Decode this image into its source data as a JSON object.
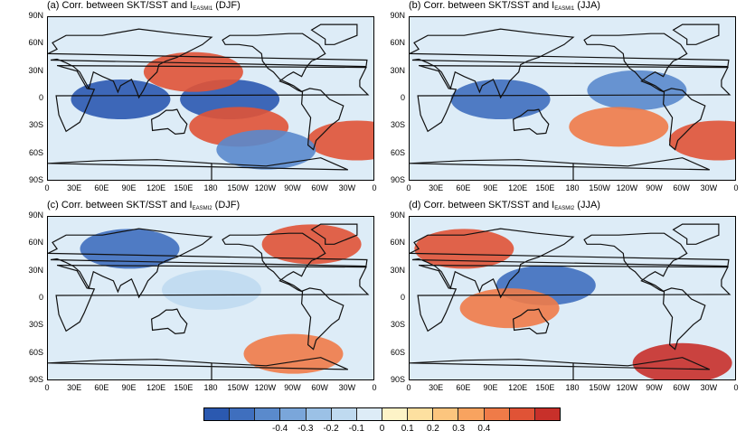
{
  "panels": [
    {
      "id": "a",
      "title_pre": "(a) Corr. between SKT/SST and I",
      "title_sub": "EASMI1",
      "title_post": " (DJF)"
    },
    {
      "id": "b",
      "title_pre": "(b) Corr. between SKT/SST and I",
      "title_sub": "EASMI1",
      "title_post": " (JJA)"
    },
    {
      "id": "c",
      "title_pre": "(c) Corr. between SKT/SST and I",
      "title_sub": "EASMI2",
      "title_post": " (DJF)"
    },
    {
      "id": "d",
      "title_pre": "(d) Corr. between SKT/SST and I",
      "title_sub": "EASMI2",
      "title_post": " (JJA)"
    }
  ],
  "y_ticks": [
    "90N",
    "60N",
    "30N",
    "0",
    "30S",
    "60S",
    "90S"
  ],
  "x_ticks": [
    "0",
    "30E",
    "60E",
    "90E",
    "120E",
    "150E",
    "180",
    "150W",
    "120W",
    "90W",
    "60W",
    "30W",
    "0"
  ],
  "colorbar": {
    "ticks": [
      "-0.4",
      "-0.3",
      "-0.2",
      "-0.1",
      "0",
      "0.1",
      "0.2",
      "0.3",
      "0.4"
    ],
    "colors": [
      "#2b59b0",
      "#3f6fbe",
      "#5a8acc",
      "#7aa6da",
      "#9bc1e6",
      "#bfdaf0",
      "#ddecf7",
      "#fdf3c7",
      "#fde0a0",
      "#fcc57e",
      "#f8a35f",
      "#ef7b48",
      "#e05336",
      "#c8302a"
    ]
  },
  "chart_data": {
    "type": "heatmap",
    "xlabel": "",
    "ylabel": "",
    "xlim": [
      0,
      360
    ],
    "ylim": [
      -90,
      90
    ],
    "colorbar_range": [
      -0.45,
      0.45
    ],
    "panels": [
      {
        "title": "(a) Corr. between SKT/SST and IEASMI1 (DJF)",
        "features": [
          {
            "region": "Indian Ocean / Maritime Continent",
            "lon": 80,
            "lat": 0,
            "value": -0.4
          },
          {
            "region": "Tropical central-east Pacific",
            "lon": 200,
            "lat": 0,
            "value": -0.4
          },
          {
            "region": "North Pacific (20-40N)",
            "lon": 160,
            "lat": 30,
            "value": 0.35
          },
          {
            "region": "South Pacific (30S)",
            "lon": 210,
            "lat": -30,
            "value": 0.35
          },
          {
            "region": "South Atlantic (40S)",
            "lon": 340,
            "lat": -45,
            "value": 0.35
          },
          {
            "region": "Southern Ocean (60S)",
            "lon": 240,
            "lat": -55,
            "value": -0.3
          }
        ]
      },
      {
        "title": "(b) Corr. between SKT/SST and IEASMI1 (JJA)",
        "features": [
          {
            "region": "Indian Ocean / Maritime Continent",
            "lon": 100,
            "lat": 0,
            "value": -0.35
          },
          {
            "region": "Tropical east Pacific",
            "lon": 250,
            "lat": 10,
            "value": -0.3
          },
          {
            "region": "South Pacific (30S)",
            "lon": 230,
            "lat": -30,
            "value": 0.3
          },
          {
            "region": "South Atlantic",
            "lon": 340,
            "lat": -45,
            "value": 0.35
          }
        ]
      },
      {
        "title": "(c) Corr. between SKT/SST and IEASMI2 (DJF)",
        "features": [
          {
            "region": "Northeast Canada / Greenland",
            "lon": 290,
            "lat": 60,
            "value": 0.35
          },
          {
            "region": "Siberia",
            "lon": 90,
            "lat": 55,
            "value": -0.35
          },
          {
            "region": "Tropical Pacific",
            "lon": 180,
            "lat": 10,
            "value": -0.1
          },
          {
            "region": "Southern Ocean (60S)",
            "lon": 270,
            "lat": -60,
            "value": 0.3
          }
        ]
      },
      {
        "title": "(d) Corr. between SKT/SST and IEASMI2 (JJA)",
        "features": [
          {
            "region": "Central Asia",
            "lon": 60,
            "lat": 55,
            "value": 0.35
          },
          {
            "region": "Western North Pacific",
            "lon": 150,
            "lat": 15,
            "value": -0.35
          },
          {
            "region": "Maritime Continent",
            "lon": 110,
            "lat": -10,
            "value": 0.3
          },
          {
            "region": "Antarctic margin",
            "lon": 300,
            "lat": -70,
            "value": 0.4
          }
        ]
      }
    ]
  }
}
